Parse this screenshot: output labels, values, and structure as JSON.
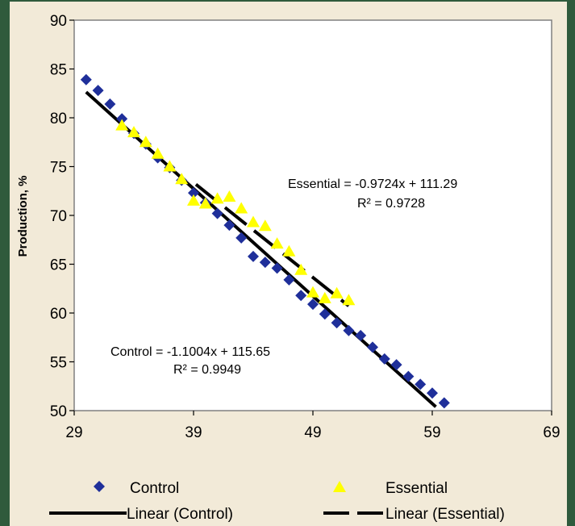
{
  "chart_data": {
    "type": "scatter",
    "ylabel": "Production, %",
    "xlabel": "",
    "xlim": [
      29,
      69
    ],
    "ylim": [
      50,
      90
    ],
    "xticks": [
      29,
      39,
      49,
      59,
      69
    ],
    "yticks": [
      50,
      55,
      60,
      65,
      70,
      75,
      80,
      85,
      90
    ],
    "grid": false,
    "legend_position": "bottom",
    "series": [
      {
        "name": "Control",
        "marker": "diamond",
        "color": "#1f2f9a",
        "points": [
          [
            30,
            83.9
          ],
          [
            31,
            82.8
          ],
          [
            32,
            81.4
          ],
          [
            33,
            79.9
          ],
          [
            34,
            78.4
          ],
          [
            35,
            77.3
          ],
          [
            36,
            75.9
          ],
          [
            37,
            74.9
          ],
          [
            38,
            73.6
          ],
          [
            39,
            72.3
          ],
          [
            40,
            71.3
          ],
          [
            41,
            70.2
          ],
          [
            42,
            69.0
          ],
          [
            43,
            67.7
          ],
          [
            44,
            65.8
          ],
          [
            45,
            65.2
          ],
          [
            46,
            64.6
          ],
          [
            47,
            63.4
          ],
          [
            48,
            61.8
          ],
          [
            49,
            60.9
          ],
          [
            50,
            59.9
          ],
          [
            51,
            59.0
          ],
          [
            52,
            58.2
          ],
          [
            53,
            57.7
          ],
          [
            54,
            56.5
          ],
          [
            55,
            55.3
          ],
          [
            56,
            54.7
          ],
          [
            57,
            53.5
          ],
          [
            58,
            52.7
          ],
          [
            59,
            51.8
          ],
          [
            60,
            50.8
          ]
        ]
      },
      {
        "name": "Essential",
        "marker": "triangle",
        "color": "#ffff00",
        "points": [
          [
            33,
            79.2
          ],
          [
            34,
            78.5
          ],
          [
            35,
            77.5
          ],
          [
            36,
            76.3
          ],
          [
            37,
            75.0
          ],
          [
            38,
            73.7
          ],
          [
            39,
            71.5
          ],
          [
            40,
            71.2
          ],
          [
            41,
            71.7
          ],
          [
            42,
            71.9
          ],
          [
            43,
            70.7
          ],
          [
            44,
            69.3
          ],
          [
            45,
            68.9
          ],
          [
            46,
            67.1
          ],
          [
            47,
            66.3
          ],
          [
            48,
            64.4
          ],
          [
            49,
            62.1
          ],
          [
            50,
            61.5
          ],
          [
            51,
            62.0
          ],
          [
            52,
            61.3
          ]
        ]
      }
    ],
    "trendlines": [
      {
        "name": "Linear (Control)",
        "slope": -1.1004,
        "intercept": 115.65,
        "x_range": [
          30,
          59.3
        ],
        "style": "solid"
      },
      {
        "name": "Linear (Essential)",
        "slope": -0.9724,
        "intercept": 111.29,
        "x_range": [
          39.2,
          52
        ],
        "style": "dashed"
      }
    ],
    "annotations": {
      "essential_eq": "Essential = -0.9724x + 111.29",
      "essential_r2": "R² = 0.9728",
      "control_eq": "Control  = -1.1004x + 115.65",
      "control_r2": "R² = 0.9949"
    },
    "legend": {
      "control": "Control",
      "essential": "Essential",
      "linear_control": "Linear (Control)",
      "linear_essential": "Linear (Essential)"
    }
  }
}
